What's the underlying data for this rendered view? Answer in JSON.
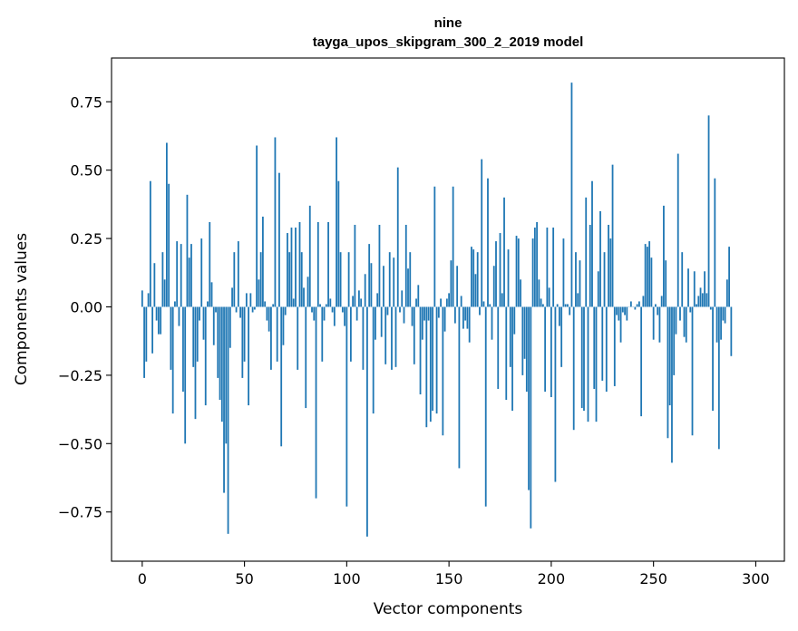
{
  "chart_data": {
    "type": "bar",
    "title": "nine",
    "subtitle": "tayga_upos_skipgram_300_2_2019 model",
    "xlabel": "Vector components",
    "ylabel": "Components values",
    "xlim": [
      -15,
      314
    ],
    "ylim": [
      -0.93,
      0.91
    ],
    "xticks": [
      0,
      50,
      100,
      150,
      200,
      250,
      300
    ],
    "yticks": [
      -0.75,
      -0.5,
      -0.25,
      0.0,
      0.25,
      0.5,
      0.75
    ],
    "ytick_labels": [
      "−0.75",
      "−0.50",
      "−0.25",
      "0.00",
      "0.25",
      "0.50",
      "0.75"
    ],
    "bar_color": "#1f77b4",
    "grid": false,
    "values": [
      0.06,
      -0.26,
      -0.2,
      0.05,
      0.46,
      -0.17,
      0.16,
      -0.05,
      -0.1,
      -0.1,
      0.2,
      0.1,
      0.6,
      0.45,
      -0.23,
      -0.39,
      0.02,
      0.24,
      -0.07,
      0.23,
      -0.31,
      -0.5,
      0.41,
      0.18,
      0.23,
      -0.22,
      -0.41,
      -0.2,
      -0.05,
      0.25,
      -0.12,
      -0.36,
      0.02,
      0.31,
      0.09,
      -0.14,
      -0.02,
      -0.26,
      -0.34,
      -0.42,
      -0.68,
      -0.5,
      -0.83,
      -0.15,
      0.07,
      0.2,
      -0.02,
      0.24,
      -0.04,
      -0.26,
      -0.2,
      0.05,
      -0.36,
      0.05,
      -0.02,
      -0.01,
      0.59,
      0.1,
      0.2,
      0.33,
      0.02,
      -0.05,
      -0.09,
      -0.23,
      0.01,
      0.62,
      -0.2,
      0.49,
      -0.51,
      -0.14,
      -0.03,
      0.27,
      0.2,
      0.29,
      0.03,
      0.29,
      -0.23,
      0.31,
      0.2,
      0.07,
      -0.37,
      0.11,
      0.37,
      -0.02,
      -0.05,
      -0.7,
      0.31,
      0.01,
      -0.2,
      -0.05,
      0.01,
      0.31,
      0.03,
      -0.02,
      -0.07,
      0.62,
      0.46,
      0.2,
      -0.02,
      -0.07,
      -0.73,
      0.2,
      -0.2,
      0.04,
      0.3,
      -0.05,
      0.06,
      0.03,
      -0.23,
      0.12,
      -0.84,
      0.23,
      0.16,
      -0.39,
      -0.12,
      0.05,
      0.3,
      -0.11,
      0.15,
      -0.21,
      -0.03,
      0.2,
      -0.23,
      0.18,
      -0.22,
      0.51,
      -0.02,
      0.06,
      -0.06,
      0.3,
      0.14,
      0.2,
      -0.07,
      -0.21,
      0.03,
      0.08,
      -0.32,
      -0.12,
      -0.05,
      -0.44,
      -0.05,
      -0.42,
      -0.38,
      0.44,
      -0.39,
      -0.04,
      0.03,
      -0.47,
      -0.09,
      0.03,
      0.05,
      0.17,
      0.44,
      -0.06,
      0.15,
      -0.59,
      0.04,
      -0.08,
      -0.05,
      -0.08,
      -0.13,
      0.22,
      0.21,
      0.12,
      0.2,
      -0.03,
      0.54,
      0.02,
      -0.73,
      0.47,
      0.01,
      -0.12,
      0.15,
      0.24,
      -0.3,
      0.27,
      0.05,
      0.4,
      -0.34,
      0.21,
      -0.22,
      -0.38,
      -0.1,
      0.26,
      0.25,
      0.1,
      -0.25,
      -0.19,
      -0.31,
      -0.67,
      -0.81,
      0.25,
      0.29,
      0.31,
      0.1,
      0.03,
      0.01,
      -0.31,
      0.29,
      0.07,
      -0.33,
      0.29,
      -0.64,
      0.01,
      -0.07,
      -0.22,
      0.25,
      0.01,
      0.01,
      -0.03,
      0.82,
      -0.45,
      0.2,
      0.05,
      0.17,
      -0.37,
      -0.38,
      0.4,
      -0.42,
      0.3,
      0.46,
      -0.3,
      -0.42,
      0.13,
      0.35,
      -0.27,
      0.2,
      -0.31,
      0.3,
      0.25,
      0.52,
      -0.29,
      -0.03,
      -0.05,
      -0.13,
      -0.02,
      -0.03,
      -0.05,
      0.0,
      0.02,
      0.0,
      -0.01,
      0.01,
      0.02,
      -0.4,
      0.04,
      0.23,
      0.22,
      0.24,
      0.18,
      -0.12,
      0.01,
      -0.03,
      -0.13,
      0.04,
      0.37,
      0.17,
      -0.48,
      -0.36,
      -0.57,
      -0.25,
      -0.1,
      0.56,
      -0.05,
      0.2,
      -0.11,
      -0.13,
      0.14,
      -0.02,
      -0.47,
      0.13,
      0.01,
      0.04,
      0.07,
      0.05,
      0.13,
      0.05,
      0.7,
      -0.01,
      -0.38,
      0.47,
      -0.13,
      -0.52,
      -0.12,
      -0.05,
      -0.06,
      0.1,
      0.22,
      -0.18
    ]
  }
}
